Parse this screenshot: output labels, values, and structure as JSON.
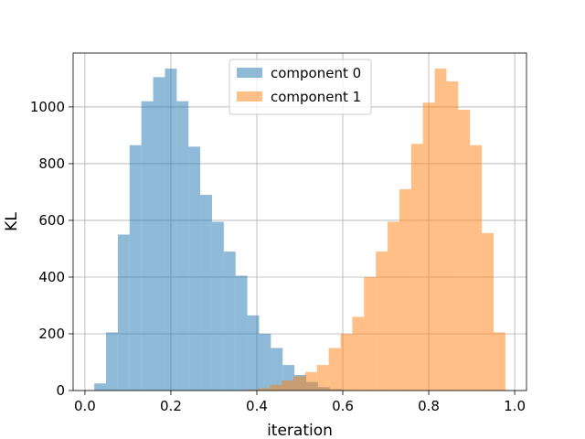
{
  "chart_data": {
    "type": "bar",
    "title": "",
    "xlabel": "iteration",
    "ylabel": "KL",
    "xlim": [
      -0.0275,
      1.0275
    ],
    "ylim": [
      0,
      1190
    ],
    "xticks": [
      0.0,
      0.2,
      0.4,
      0.6,
      0.8,
      1.0
    ],
    "xtick_labels": [
      "0.0",
      "0.2",
      "0.4",
      "0.6",
      "0.8",
      "1.0"
    ],
    "yticks": [
      0,
      200,
      400,
      600,
      800,
      1000
    ],
    "ytick_labels": [
      "0",
      "200",
      "400",
      "600",
      "800",
      "1000"
    ],
    "grid": true,
    "legend_position": "upper center",
    "series": [
      {
        "name": "component 0",
        "color": "#1f77b4",
        "alpha": 0.5,
        "bin_edges": [
          0.0217,
          0.0491,
          0.0765,
          0.1039,
          0.1313,
          0.1587,
          0.1861,
          0.2135,
          0.2409,
          0.2683,
          0.2957,
          0.3231,
          0.3505,
          0.3779,
          0.4053,
          0.4327,
          0.4601,
          0.4875,
          0.5149,
          0.5423,
          0.5697,
          0.5971,
          0.6245
        ],
        "counts": [
          25,
          205,
          550,
          865,
          1020,
          1105,
          1135,
          1020,
          860,
          690,
          595,
          490,
          405,
          265,
          200,
          150,
          90,
          55,
          30,
          12,
          5,
          2
        ]
      },
      {
        "name": "component 1",
        "color": "#ff7f0e",
        "alpha": 0.5,
        "bin_edges": [
          0.3755,
          0.4029,
          0.4303,
          0.4577,
          0.4851,
          0.5125,
          0.5399,
          0.5673,
          0.5947,
          0.6221,
          0.6495,
          0.6769,
          0.7043,
          0.7317,
          0.7591,
          0.7865,
          0.8139,
          0.8413,
          0.8687,
          0.8961,
          0.9235,
          0.9509,
          0.9783
        ],
        "counts": [
          3,
          8,
          20,
          35,
          50,
          65,
          90,
          150,
          200,
          260,
          400,
          490,
          595,
          710,
          870,
          1015,
          1135,
          1090,
          990,
          865,
          555,
          205
        ]
      }
    ]
  }
}
